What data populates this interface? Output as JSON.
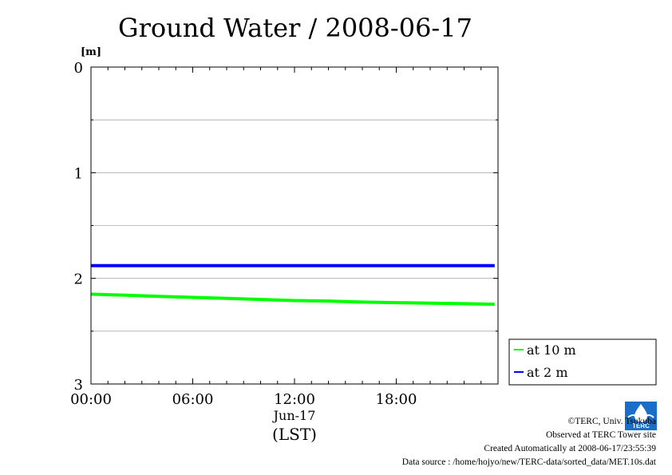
{
  "chart_data": {
    "type": "line",
    "title": "Ground Water / 2008-06-17",
    "ylabel": "[m]",
    "y_inverted": true,
    "ylim": [
      0,
      3
    ],
    "yticks": [
      "0",
      "1",
      "2",
      "3"
    ],
    "yminor": [
      0.5,
      1.5,
      2.5
    ],
    "xlim": [
      "2008-06-17 00:00",
      "2008-06-18 00:00"
    ],
    "xticks": [
      "00:00",
      "06:00",
      "12:00",
      "18:00"
    ],
    "xticks_hours": [
      0,
      6,
      12,
      18
    ],
    "date_label": "Jun-17",
    "xlabel": "(LST)",
    "grid": true,
    "legend_position": "right-bottom outside",
    "series": [
      {
        "name": "at 10 m",
        "color": "#00ff00",
        "x_hours": [
          0,
          2,
          4,
          6,
          8,
          10,
          12,
          14,
          16,
          18,
          20,
          22,
          23.8
        ],
        "values": [
          2.15,
          2.16,
          2.17,
          2.18,
          2.19,
          2.2,
          2.21,
          2.215,
          2.225,
          2.23,
          2.235,
          2.24,
          2.245
        ]
      },
      {
        "name": "at 2 m",
        "color": "#0000ff",
        "x_hours": [
          0,
          2,
          4,
          6,
          8,
          10,
          12,
          14,
          16,
          18,
          20,
          22,
          23.8
        ],
        "values": [
          1.88,
          1.88,
          1.88,
          1.88,
          1.88,
          1.88,
          1.88,
          1.88,
          1.88,
          1.88,
          1.88,
          1.88,
          1.88
        ]
      }
    ]
  },
  "footer": {
    "copyright": "©TERC, Univ. Tsukuba",
    "observed": "Observed at TERC Tower site",
    "created": "Created Automatically at 2008-06-17/23:55:39",
    "source": "Data source : /home/hojyo/new/TERC-data/sorted_data/MET.10s.dat",
    "logo_text": "TERC"
  }
}
